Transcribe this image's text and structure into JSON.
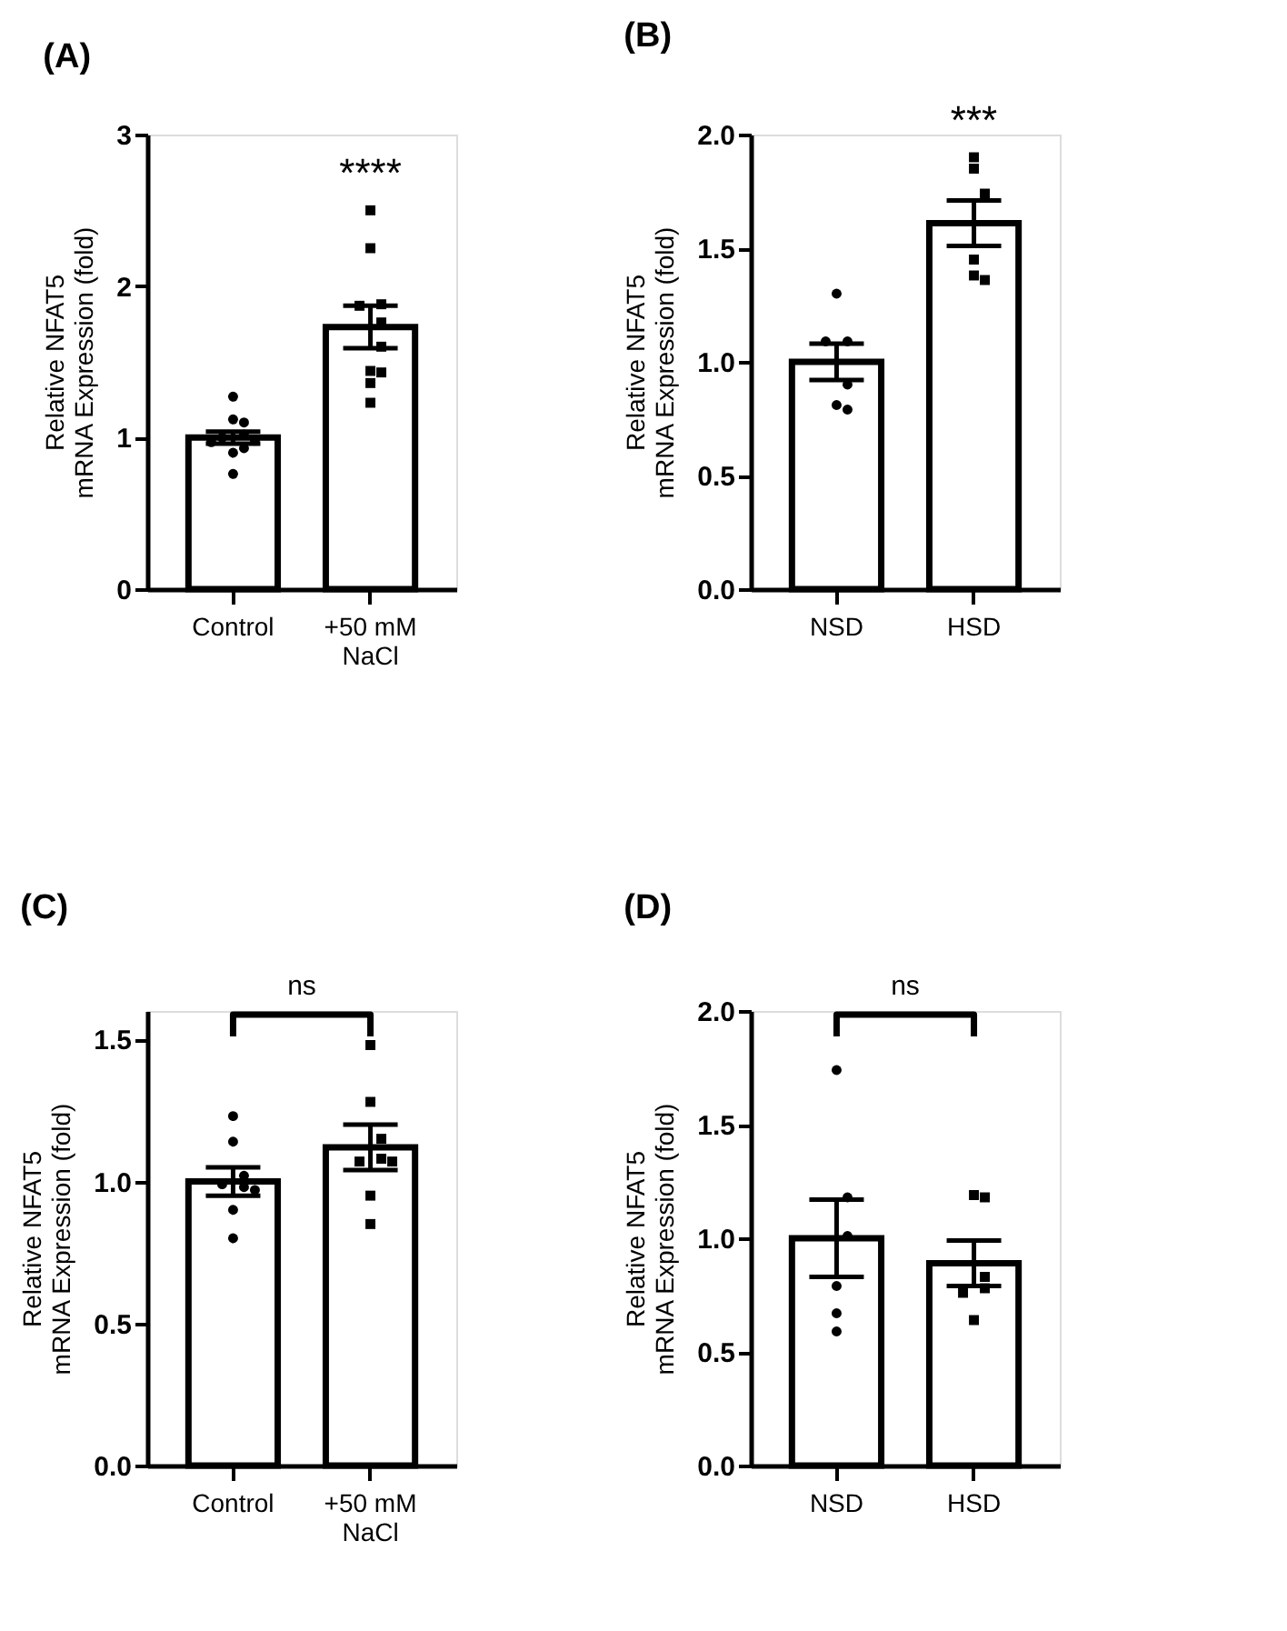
{
  "chart_data": [
    {
      "type": "bar",
      "title": "(A)",
      "ylabel": "Relative NFAT5\nmRNA Expression (fold)",
      "categories": [
        "Control",
        "+50 mM\nNaCl"
      ],
      "ylim": [
        0,
        3
      ],
      "yticks": [
        0,
        1,
        2,
        3
      ],
      "annotations": [
        {
          "text": "****",
          "x": "+50 mM\nNaCl",
          "y": 2.5
        }
      ],
      "series": [
        {
          "type": "bar",
          "color": "#ffffff",
          "values": [
            1.0,
            1.73
          ],
          "errors": [
            0.04,
            0.14
          ]
        },
        {
          "type": "scatter",
          "marker": "circle",
          "color": "#000000",
          "x": [
            "Control",
            "Control",
            "Control",
            "Control",
            "Control",
            "Control",
            "Control",
            "Control",
            "Control",
            "Control"
          ],
          "values": [
            1.27,
            1.12,
            1.1,
            1.02,
            1.0,
            0.98,
            0.97,
            0.93,
            0.9,
            0.76
          ]
        },
        {
          "type": "scatter",
          "marker": "square",
          "color": "#000000",
          "x": [
            "+50 mM\nNaCl",
            "+50 mM\nNaCl",
            "+50 mM\nNaCl",
            "+50 mM\nNaCl",
            "+50 mM\nNaCl",
            "+50 mM\nNaCl",
            "+50 mM\nNaCl",
            "+50 mM\nNaCl",
            "+50 mM\nNaCl",
            "+50 mM\nNaCl"
          ],
          "values": [
            2.5,
            2.25,
            1.88,
            1.87,
            1.76,
            1.6,
            1.44,
            1.43,
            1.36,
            1.23
          ]
        }
      ]
    },
    {
      "type": "bar",
      "title": "(B)",
      "ylabel": "Relative NFAT5\nmRNA Expression (fold)",
      "categories": [
        "NSD",
        "HSD"
      ],
      "ylim": [
        0,
        2
      ],
      "yticks": [
        {
          "value": 0,
          "label": "0.0"
        },
        0.5,
        {
          "value": 1,
          "label": "1.0"
        },
        1.5,
        {
          "value": 2,
          "label": "2.0"
        }
      ],
      "annotations": [
        {
          "text": "***",
          "x": "HSD",
          "y": 1.9
        }
      ],
      "series": [
        {
          "type": "bar",
          "color": "#ffffff",
          "values": [
            1.0,
            1.61
          ],
          "errors": [
            0.08,
            0.1
          ]
        },
        {
          "type": "scatter",
          "marker": "circle",
          "color": "#000000",
          "x": [
            "NSD",
            "NSD",
            "NSD",
            "NSD",
            "NSD",
            "NSD"
          ],
          "values": [
            1.3,
            1.09,
            1.09,
            0.9,
            0.81,
            0.79
          ]
        },
        {
          "type": "scatter",
          "marker": "square",
          "color": "#000000",
          "x": [
            "HSD",
            "HSD",
            "HSD",
            "HSD",
            "HSD",
            "HSD"
          ],
          "values": [
            1.9,
            1.85,
            1.74,
            1.45,
            1.38,
            1.36
          ]
        }
      ]
    },
    {
      "type": "bar",
      "title": "(C)",
      "ylabel": "Relative NFAT5\nmRNA Expression (fold)",
      "categories": [
        "Control",
        "+50 mM\nNaCl"
      ],
      "ylim": [
        0,
        1.6
      ],
      "yticks": [
        {
          "value": 0,
          "label": "0.0"
        },
        0.5,
        {
          "value": 1,
          "label": "1.0"
        },
        1.5
      ],
      "annotations": [
        "ns"
      ],
      "series": [
        {
          "type": "bar",
          "color": "#ffffff",
          "values": [
            1.0,
            1.12
          ],
          "errors": [
            0.05,
            0.08
          ]
        },
        {
          "type": "scatter",
          "marker": "circle",
          "color": "#000000",
          "x": [
            "Control",
            "Control",
            "Control",
            "Control",
            "Control",
            "Control",
            "Control",
            "Control"
          ],
          "values": [
            1.23,
            1.14,
            1.02,
            0.99,
            0.98,
            0.97,
            0.9,
            0.8
          ]
        },
        {
          "type": "scatter",
          "marker": "square",
          "color": "#000000",
          "x": [
            "+50 mM\nNaCl",
            "+50 mM\nNaCl",
            "+50 mM\nNaCl",
            "+50 mM\nNaCl",
            "+50 mM\nNaCl",
            "+50 mM\nNaCl",
            "+50 mM\nNaCl",
            "+50 mM\nNaCl"
          ],
          "values": [
            1.48,
            1.28,
            1.15,
            1.08,
            1.07,
            1.07,
            0.95,
            0.85
          ]
        }
      ]
    },
    {
      "type": "bar",
      "title": "(D)",
      "ylabel": "Relative NFAT5\nmRNA Expression (fold)",
      "categories": [
        "NSD",
        "HSD"
      ],
      "ylim": [
        0,
        2
      ],
      "yticks": [
        {
          "value": 0,
          "label": "0.0"
        },
        0.5,
        {
          "value": 1,
          "label": "1.0"
        },
        1.5,
        {
          "value": 2,
          "label": "2.0"
        }
      ],
      "annotations": [
        "ns"
      ],
      "series": [
        {
          "type": "bar",
          "color": "#ffffff",
          "values": [
            1.0,
            0.89
          ],
          "errors": [
            0.17,
            0.1
          ]
        },
        {
          "type": "scatter",
          "marker": "circle",
          "color": "#000000",
          "x": [
            "NSD",
            "NSD",
            "NSD",
            "NSD",
            "NSD",
            "NSD"
          ],
          "values": [
            1.74,
            1.18,
            1.01,
            0.79,
            0.67,
            0.59
          ]
        },
        {
          "type": "scatter",
          "marker": "square",
          "color": "#000000",
          "x": [
            "HSD",
            "HSD",
            "HSD",
            "HSD",
            "HSD",
            "HSD"
          ],
          "values": [
            1.19,
            1.18,
            0.83,
            0.78,
            0.76,
            0.64
          ]
        }
      ]
    }
  ]
}
